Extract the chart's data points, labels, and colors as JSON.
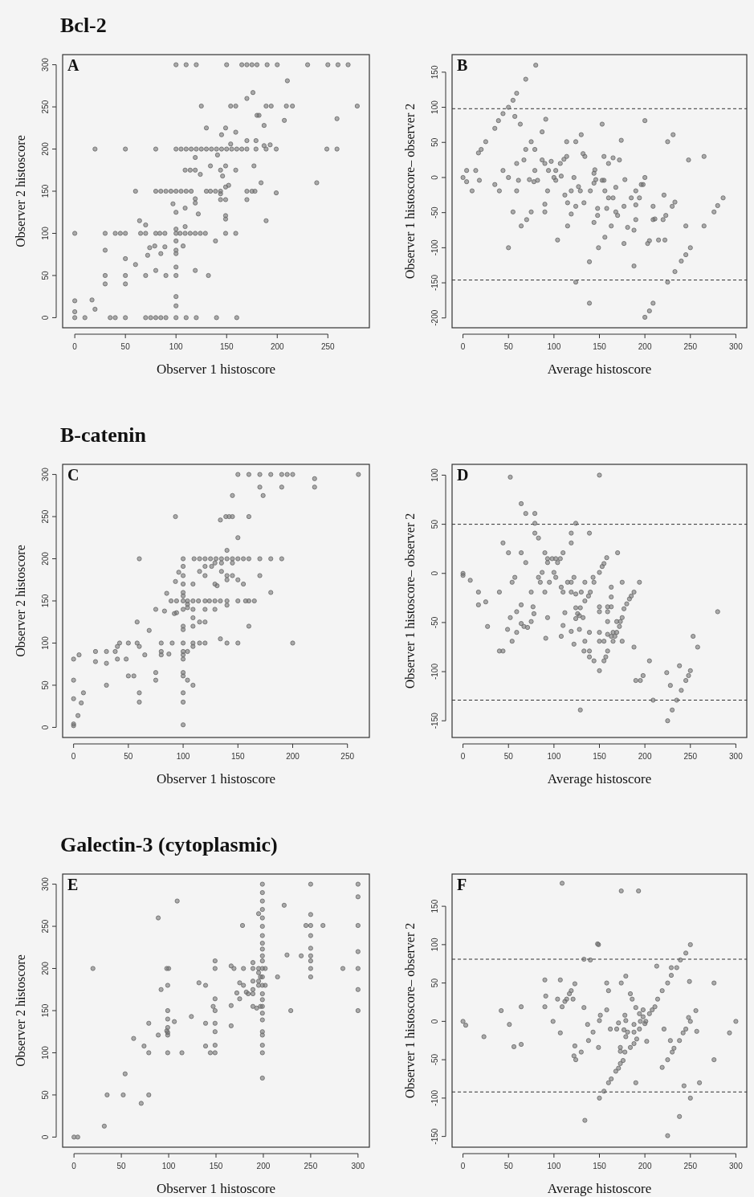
{
  "chart_data": [
    {
      "type": "scatter",
      "title": "Bcl-2",
      "xlabel": "Observer 1 histoscore",
      "ylabel": "Observer 2 histoscore",
      "annotations": [
        "A"
      ],
      "marker": "circle",
      "color": "#6e6e6e",
      "xlim": [
        -12,
        291
      ],
      "ylim": [
        -12,
        312
      ],
      "xticks": [
        0,
        50,
        100,
        150,
        200,
        250
      ],
      "yticks": [
        0,
        50,
        100,
        150,
        200,
        250,
        300
      ],
      "x": [
        100,
        110,
        120,
        150,
        165,
        170,
        175,
        180,
        190,
        200,
        230,
        250,
        260,
        270,
        210,
        176,
        170,
        125,
        154,
        159,
        189,
        194,
        209,
        215,
        279,
        180,
        182,
        207,
        259,
        187,
        130,
        149,
        159,
        145,
        170,
        179,
        154,
        193,
        187,
        20,
        50,
        80,
        100,
        105,
        110,
        115,
        120,
        125,
        130,
        135,
        140,
        145,
        150,
        155,
        160,
        165,
        170,
        179,
        189,
        199,
        249,
        259,
        119,
        141,
        134,
        149,
        177,
        109,
        114,
        119,
        144,
        159,
        124,
        146,
        184,
        239,
        149,
        152,
        60,
        80,
        85,
        90,
        95,
        100,
        105,
        110,
        115,
        130,
        134,
        139,
        144,
        170,
        175,
        178,
        144,
        199,
        119,
        119,
        144,
        149,
        170,
        97,
        109,
        100,
        122,
        149,
        149,
        189,
        64,
        70,
        109,
        0,
        30,
        40,
        45,
        50,
        65,
        70,
        80,
        84,
        89,
        100,
        104,
        109,
        114,
        119,
        124,
        129,
        149,
        159,
        100,
        139,
        100,
        30,
        74,
        79,
        89,
        107,
        72,
        85,
        100,
        100,
        50,
        60,
        30,
        50,
        70,
        90,
        100,
        132,
        80,
        119,
        30,
        50,
        100,
        100,
        100,
        0,
        17,
        0,
        20,
        0,
        10,
        35,
        40,
        50,
        70,
        75,
        80,
        85,
        90,
        100,
        110,
        120,
        140,
        160
      ],
      "values": [
        300,
        300,
        300,
        300,
        300,
        300,
        300,
        300,
        300,
        300,
        300,
        300,
        300,
        300,
        281,
        267,
        260,
        251,
        251,
        251,
        251,
        251,
        251,
        251,
        251,
        240,
        240,
        234,
        236,
        228,
        225,
        225,
        220,
        217,
        210,
        210,
        206,
        205,
        204,
        200,
        200,
        200,
        200,
        200,
        200,
        200,
        200,
        200,
        200,
        200,
        200,
        200,
        200,
        200,
        200,
        200,
        200,
        200,
        200,
        200,
        200,
        200,
        190,
        193,
        180,
        180,
        180,
        175,
        175,
        175,
        175,
        175,
        170,
        168,
        160,
        160,
        155,
        157,
        150,
        150,
        150,
        150,
        150,
        150,
        150,
        150,
        150,
        150,
        150,
        150,
        150,
        150,
        150,
        150,
        147,
        148,
        141,
        136,
        140,
        140,
        140,
        135,
        130,
        125,
        123,
        121,
        117,
        115,
        115,
        110,
        108,
        100,
        100,
        100,
        100,
        100,
        100,
        100,
        100,
        100,
        100,
        100,
        100,
        100,
        100,
        100,
        100,
        100,
        100,
        100,
        105,
        91,
        91,
        80,
        83,
        85,
        84,
        85,
        74,
        76,
        80,
        76,
        70,
        63,
        50,
        50,
        50,
        50,
        50,
        50,
        56,
        56,
        40,
        40,
        60,
        25,
        14,
        20,
        21,
        7,
        10,
        0,
        0,
        0,
        0,
        0,
        0,
        0,
        0,
        0,
        0,
        0,
        0,
        0,
        0,
        0
      ]
    },
    {
      "type": "scatter",
      "xlabel": "Average histoscore",
      "ylabel": "Observer 1 histoscore– observer 2",
      "annotations": [
        "B"
      ],
      "marker": "circle",
      "color": "#6e6e6e",
      "xlim": [
        -12,
        312
      ],
      "ylim": [
        -214,
        175
      ],
      "xticks": [
        0,
        50,
        100,
        150,
        200,
        250,
        300
      ],
      "yticks": [
        -200,
        -150,
        -100,
        -50,
        0,
        50,
        100,
        150
      ],
      "ref_lines": [
        {
          "axis": "y",
          "value": 98,
          "line_style": "dashed"
        },
        {
          "axis": "y",
          "value": -146,
          "line_style": "dashed"
        }
      ],
      "x": [
        0,
        4,
        4,
        10,
        14,
        18,
        17,
        20,
        25,
        35,
        39,
        44,
        50,
        55,
        59,
        69,
        80,
        35,
        40,
        44,
        50,
        50,
        55,
        57,
        63,
        59,
        61,
        59,
        64,
        67,
        69,
        70,
        73,
        75,
        75,
        79,
        78,
        79,
        82,
        87,
        87,
        90,
        90,
        93,
        90,
        91,
        94,
        97,
        100,
        102,
        107,
        111,
        114,
        102,
        108,
        112,
        114,
        115,
        115,
        119,
        124,
        104,
        119,
        122,
        124,
        124,
        127,
        129,
        130,
        132,
        134,
        133,
        139,
        139,
        140,
        144,
        144,
        145,
        146,
        144,
        148,
        148,
        153,
        153,
        155,
        149,
        156,
        163,
        170,
        177,
        185,
        155,
        156,
        160,
        158,
        160,
        165,
        165,
        168,
        168,
        172,
        174,
        178,
        177,
        181,
        188,
        188,
        190,
        190,
        190,
        194,
        196,
        198,
        200,
        200,
        200,
        205,
        209,
        203,
        205,
        209,
        211,
        209,
        215,
        220,
        221,
        223,
        222,
        225,
        231,
        225,
        233,
        240,
        245,
        250,
        230,
        233,
        245,
        248,
        265,
        265,
        276,
        280,
        286
      ],
      "values": [
        0,
        10,
        -6,
        -19,
        10,
        -4,
        35,
        40,
        51,
        70,
        81,
        91,
        100,
        110,
        120,
        140,
        160,
        -10,
        -19,
        10,
        0,
        -100,
        -49,
        87,
        76,
        20,
        -4,
        -19,
        -69,
        25,
        40,
        -60,
        -3,
        51,
        -49,
        40,
        -6,
        10,
        -4,
        65,
        25,
        20,
        -38,
        -19,
        -49,
        83,
        10,
        23,
        0,
        10,
        20,
        26,
        30,
        -4,
        2,
        -25,
        51,
        -36,
        -69,
        -52,
        -41,
        -89,
        -19,
        0,
        51,
        -149,
        -13,
        -19,
        61,
        34,
        30,
        -36,
        -179,
        -120,
        -19,
        -8,
        6,
        11,
        -3,
        -64,
        -44,
        -54,
        76,
        -4,
        -4,
        -100,
        -85,
        -69,
        -54,
        -41,
        -29,
        30,
        -19,
        -29,
        -44,
        20,
        28,
        -29,
        -14,
        -49,
        25,
        53,
        -3,
        -94,
        -71,
        -126,
        -75,
        -60,
        -39,
        -19,
        -29,
        -10,
        -10,
        81,
        0,
        -199,
        -190,
        -179,
        -94,
        -90,
        -60,
        -59,
        -41,
        -89,
        -60,
        -25,
        -54,
        -89,
        51,
        61,
        -149,
        -134,
        -119,
        -110,
        -100,
        -41,
        -35,
        -69,
        25,
        30,
        -69,
        -49,
        -40,
        -29
      ]
    },
    {
      "type": "scatter",
      "title": "B-catenin",
      "xlabel": "Observer 1 histoscore",
      "ylabel": "Observer 2 histoscore",
      "annotations": [
        "C"
      ],
      "marker": "circle",
      "color": "#6e6e6e",
      "xlim": [
        -10,
        270
      ],
      "ylim": [
        -12,
        312
      ],
      "xticks": [
        0,
        50,
        100,
        150,
        200,
        250
      ],
      "yticks": [
        0,
        50,
        100,
        150,
        200,
        250,
        300
      ],
      "x": [
        150,
        160,
        170,
        180,
        190,
        195,
        200,
        260,
        220,
        170,
        190,
        220,
        145,
        173,
        93,
        134,
        139,
        142,
        145,
        160,
        150,
        140,
        60,
        100,
        110,
        115,
        120,
        125,
        130,
        135,
        140,
        145,
        150,
        155,
        160,
        170,
        180,
        190,
        100,
        115,
        120,
        126,
        129,
        135,
        145,
        96,
        100,
        109,
        120,
        135,
        140,
        140,
        145,
        150,
        155,
        170,
        93,
        100,
        129,
        131,
        180,
        89,
        94,
        100,
        104,
        109,
        114,
        120,
        124,
        129,
        134,
        140,
        150,
        157,
        160,
        165,
        85,
        100,
        100,
        104,
        104,
        140,
        75,
        83,
        92,
        94,
        100,
        109,
        120,
        129,
        109,
        115,
        120,
        100,
        100,
        109,
        160,
        58,
        69,
        134,
        42,
        50,
        58,
        80,
        90,
        100,
        109,
        115,
        120,
        140,
        150,
        200,
        40,
        60,
        20,
        30,
        38,
        80,
        100,
        104,
        109,
        100,
        100,
        87,
        80,
        5,
        65,
        0,
        20,
        30,
        40,
        48,
        75,
        75,
        50,
        55,
        100,
        100,
        104,
        109,
        0,
        30,
        9,
        0,
        7,
        4,
        60,
        60,
        100,
        100,
        0,
        0,
        100
      ],
      "values": [
        300,
        300,
        300,
        300,
        300,
        300,
        300,
        300,
        295,
        285,
        285,
        285,
        275,
        275,
        250,
        246,
        250,
        250,
        250,
        250,
        225,
        210,
        200,
        200,
        200,
        200,
        200,
        200,
        200,
        200,
        200,
        200,
        200,
        200,
        200,
        200,
        200,
        200,
        191,
        185,
        191,
        191,
        195,
        195,
        195,
        184,
        180,
        170,
        180,
        185,
        180,
        175,
        180,
        175,
        170,
        180,
        173,
        170,
        170,
        168,
        160,
        150,
        150,
        150,
        150,
        150,
        150,
        150,
        150,
        150,
        150,
        150,
        150,
        150,
        150,
        150,
        159,
        160,
        156,
        146,
        142,
        145,
        140,
        138,
        135,
        136,
        140,
        140,
        140,
        140,
        130,
        125,
        125,
        120,
        116,
        120,
        120,
        125,
        115,
        105,
        100,
        100,
        100,
        100,
        100,
        100,
        100,
        100,
        100,
        100,
        100,
        100,
        96,
        96,
        90,
        90,
        90,
        90,
        90,
        90,
        96,
        86,
        81,
        87,
        86,
        86,
        86,
        81,
        78,
        76,
        81,
        81,
        65,
        56,
        61,
        61,
        65,
        61,
        56,
        50,
        56,
        50,
        41,
        34,
        29,
        14,
        41,
        30,
        41,
        30,
        2,
        4,
        3
      ]
    },
    {
      "type": "scatter",
      "xlabel": "Average histoscore",
      "ylabel": "Observer 1 histoscore– observer 2",
      "annotations": [
        "D"
      ],
      "marker": "circle",
      "color": "#6e6e6e",
      "xlim": [
        -12,
        312
      ],
      "ylim": [
        -167,
        111
      ],
      "xticks": [
        0,
        50,
        100,
        150,
        200,
        250,
        300
      ],
      "yticks": [
        -150,
        -100,
        -50,
        0,
        50,
        100
      ],
      "ref_lines": [
        {
          "axis": "y",
          "value": 50,
          "line_style": "dashed"
        },
        {
          "axis": "y",
          "value": -129,
          "line_style": "dashed"
        }
      ],
      "x": [
        0,
        0,
        8,
        17,
        17,
        25,
        27,
        40,
        40,
        44,
        44,
        50,
        49,
        52,
        52,
        54,
        54,
        57,
        59,
        59,
        64,
        64,
        64,
        64,
        67,
        71,
        69,
        69,
        75,
        75,
        77,
        78,
        79,
        79,
        79,
        83,
        83,
        85,
        87,
        90,
        90,
        93,
        93,
        91,
        95,
        93,
        98,
        100,
        102,
        104,
        102,
        107,
        110,
        108,
        110,
        108,
        110,
        112,
        115,
        119,
        119,
        119,
        119,
        119,
        122,
        122,
        124,
        124,
        124,
        124,
        126,
        128,
        129,
        128,
        130,
        129,
        132,
        133,
        134,
        134,
        134,
        138,
        139,
        139,
        139,
        139,
        140,
        143,
        144,
        144,
        150,
        150,
        150,
        150,
        150,
        150,
        150,
        153,
        155,
        158,
        155,
        155,
        157,
        159,
        159,
        159,
        159,
        159,
        163,
        163,
        163,
        163,
        165,
        165,
        167,
        169,
        169,
        170,
        172,
        173,
        175,
        175,
        175,
        177,
        180,
        183,
        185,
        188,
        188,
        190,
        194,
        195,
        198,
        205,
        209,
        224,
        225,
        228,
        230,
        235,
        238,
        240,
        245,
        248,
        250,
        253,
        258,
        280
      ],
      "values": [
        0,
        -2,
        -7,
        -19,
        -32,
        -29,
        -54,
        -19,
        -79,
        -79,
        31,
        21,
        -57,
        -45,
        98,
        -9,
        -69,
        -4,
        -60,
        -39,
        21,
        71,
        -32,
        -51,
        -54,
        -55,
        11,
        61,
        -19,
        -49,
        -34,
        -41,
        61,
        51,
        41,
        36,
        -4,
        -9,
        1,
        -19,
        21,
        15,
        -45,
        -66,
        -9,
        11,
        15,
        1,
        -4,
        11,
        15,
        15,
        21,
        -14,
        -19,
        -64,
        -53,
        -40,
        -9,
        41,
        31,
        -19,
        -9,
        -59,
        -4,
        -72,
        51,
        -21,
        -35,
        -46,
        -41,
        -43,
        -35,
        -57,
        -19,
        -139,
        -45,
        -79,
        -28,
        -9,
        -69,
        -23,
        -60,
        -79,
        41,
        -85,
        -19,
        -4,
        -9,
        -89,
        100,
        1,
        -99,
        -34,
        -39,
        -60,
        -69,
        7,
        10,
        16,
        -69,
        -89,
        -85,
        -79,
        -49,
        -34,
        -39,
        -62,
        -34,
        -24,
        -14,
        -64,
        -69,
        -60,
        -64,
        -60,
        -49,
        21,
        -54,
        -49,
        -45,
        -9,
        -69,
        -36,
        -31,
        -26,
        -23,
        -75,
        -19,
        -109,
        -9,
        -109,
        -104,
        -89,
        -129,
        -101,
        -150,
        -114,
        -139,
        -129,
        -94,
        -119,
        -109,
        -104,
        -99,
        -64,
        -75,
        -39
      ]
    },
    {
      "type": "scatter",
      "title": "Galectin-3 (cytoplasmic)",
      "xlabel": "Observer 1 histoscore",
      "ylabel": "Observer 2 histoscore",
      "annotations": [
        "E"
      ],
      "marker": "circle",
      "color": "#6e6e6e",
      "xlim": [
        -12,
        312
      ],
      "ylim": [
        -12,
        312
      ],
      "xticks": [
        0,
        50,
        100,
        150,
        200,
        250,
        300
      ],
      "yticks": [
        0,
        50,
        100,
        150,
        200,
        250,
        300
      ],
      "x": [
        0,
        4,
        32,
        35,
        52,
        79,
        71,
        54,
        20,
        63,
        74,
        79,
        79,
        89,
        92,
        89,
        109,
        98,
        100,
        99,
        99,
        99,
        99,
        99,
        99,
        99,
        98,
        106,
        114,
        124,
        132,
        139,
        139,
        139,
        144,
        147,
        149,
        149,
        149,
        149,
        149,
        149,
        149,
        149,
        166,
        166,
        166,
        169,
        172,
        175,
        175,
        178,
        179,
        179,
        182,
        184,
        189,
        189,
        189,
        189,
        189,
        189,
        193,
        195,
        195,
        195,
        195,
        195,
        197,
        197,
        199,
        199,
        199,
        199,
        199,
        199,
        199,
        199,
        199,
        199,
        199,
        199,
        199,
        199,
        199,
        199,
        199,
        199,
        199,
        199,
        199,
        199,
        199,
        199,
        202,
        202,
        215,
        222,
        225,
        229,
        240,
        245,
        250,
        250,
        250,
        250,
        250,
        250,
        250,
        250,
        250,
        263,
        284,
        300,
        300,
        300,
        300,
        300,
        300,
        300
      ],
      "values": [
        0,
        0,
        13,
        50,
        50,
        50,
        40,
        75,
        200,
        117,
        108,
        100,
        135,
        121,
        175,
        260,
        280,
        200,
        200,
        180,
        150,
        140,
        130,
        124,
        121,
        100,
        126,
        137,
        100,
        143,
        183,
        180,
        135,
        108,
        100,
        155,
        209,
        200,
        164,
        150,
        135,
        125,
        109,
        100,
        156,
        132,
        203,
        200,
        171,
        183,
        164,
        251,
        200,
        180,
        172,
        170,
        207,
        200,
        185,
        175,
        170,
        155,
        153,
        265,
        200,
        195,
        185,
        180,
        190,
        155,
        300,
        290,
        280,
        270,
        260,
        250,
        239,
        230,
        223,
        215,
        209,
        200,
        190,
        180,
        170,
        163,
        155,
        147,
        139,
        125,
        121,
        109,
        100,
        70,
        200,
        180,
        190,
        275,
        216,
        150,
        215,
        251,
        251,
        300,
        264,
        239,
        224,
        215,
        209,
        200,
        190,
        251,
        200,
        300,
        285,
        251,
        220,
        200,
        175,
        150
      ]
    },
    {
      "type": "scatter",
      "xlabel": "Average histoscore",
      "ylabel": "Observer 1 histoscore– observer 2",
      "annotations": [
        "F"
      ],
      "marker": "circle",
      "color": "#6e6e6e",
      "xlim": [
        -12,
        312
      ],
      "ylim": [
        -164,
        192
      ],
      "xticks": [
        0,
        50,
        100,
        150,
        200,
        250,
        300
      ],
      "yticks": [
        -150,
        -100,
        -50,
        0,
        50,
        100,
        150
      ],
      "ref_lines": [
        {
          "axis": "y",
          "value": 81,
          "line_style": "dashed"
        },
        {
          "axis": "y",
          "value": -92,
          "line_style": "dashed"
        }
      ],
      "x": [
        0,
        3,
        23,
        42,
        51,
        56,
        64,
        64,
        90,
        91,
        90,
        99,
        104,
        107,
        107,
        109,
        109,
        112,
        114,
        117,
        119,
        121,
        123,
        123,
        122,
        124,
        130,
        133,
        133,
        134,
        137,
        138,
        140,
        143,
        148,
        149,
        149,
        150,
        150,
        151,
        155,
        158,
        158,
        160,
        160,
        162,
        163,
        168,
        169,
        171,
        171,
        173,
        174,
        173,
        173,
        174,
        176,
        177,
        178,
        179,
        179,
        179,
        178,
        181,
        184,
        184,
        186,
        188,
        188,
        188,
        190,
        190,
        191,
        193,
        194,
        194,
        195,
        198,
        198,
        200,
        201,
        202,
        205,
        208,
        211,
        214,
        213,
        219,
        219,
        221,
        225,
        225,
        225,
        228,
        229,
        229,
        230,
        232,
        235,
        238,
        238,
        239,
        242,
        243,
        245,
        245,
        249,
        248,
        250,
        250,
        250,
        256,
        257,
        260,
        276,
        276,
        293,
        300
      ],
      "values": [
        0,
        -5,
        -20,
        14,
        -4,
        -33,
        19,
        -30,
        54,
        33,
        19,
        0,
        29,
        54,
        -15,
        19,
        180,
        26,
        29,
        36,
        40,
        29,
        49,
        -32,
        -45,
        -50,
        -40,
        18,
        81,
        -129,
        -4,
        -25,
        80,
        -14,
        101,
        100,
        -34,
        -100,
        1,
        8,
        -91,
        15,
        50,
        40,
        -80,
        -10,
        -75,
        -65,
        -10,
        -61,
        -2,
        -55,
        170,
        -34,
        -39,
        50,
        -51,
        -11,
        8,
        59,
        1,
        -20,
        -40,
        -14,
        -34,
        36,
        29,
        -29,
        -4,
        -14,
        18,
        -80,
        -23,
        170,
        -10,
        10,
        0,
        15,
        6,
        -3,
        0,
        -26,
        10,
        15,
        19,
        29,
        72,
        40,
        -60,
        -10,
        50,
        -50,
        -149,
        -25,
        60,
        70,
        -40,
        -35,
        70,
        -25,
        -124,
        80,
        -15,
        -84,
        -10,
        89,
        52,
        5,
        0,
        100,
        -100,
        14,
        -13,
        -80,
        50,
        -50,
        -15,
        0
      ]
    }
  ]
}
